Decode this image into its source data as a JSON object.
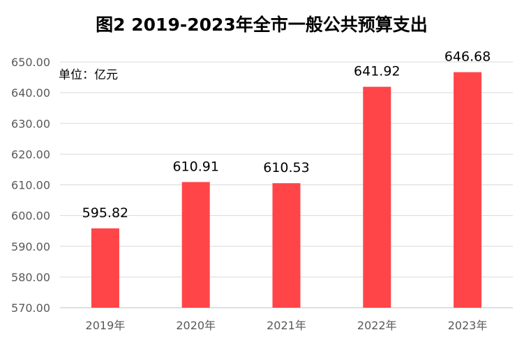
{
  "chart_data": {
    "type": "bar",
    "title": "图2  2019-2023年全市一般公共预算支出",
    "unit_label": "单位：亿元",
    "categories": [
      "2019年",
      "2020年",
      "2021年",
      "2022年",
      "2023年"
    ],
    "values": [
      595.82,
      610.91,
      610.53,
      641.92,
      646.68
    ],
    "data_labels": [
      "595.82",
      "610.91",
      "610.53",
      "641.92",
      "646.68"
    ],
    "ylim": [
      570,
      650
    ],
    "yticks": [
      "570.00",
      "580.00",
      "590.00",
      "600.00",
      "610.00",
      "620.00",
      "630.00",
      "640.00",
      "650.00"
    ],
    "bar_color": "#ff4548",
    "grid": true,
    "legend": "none"
  }
}
